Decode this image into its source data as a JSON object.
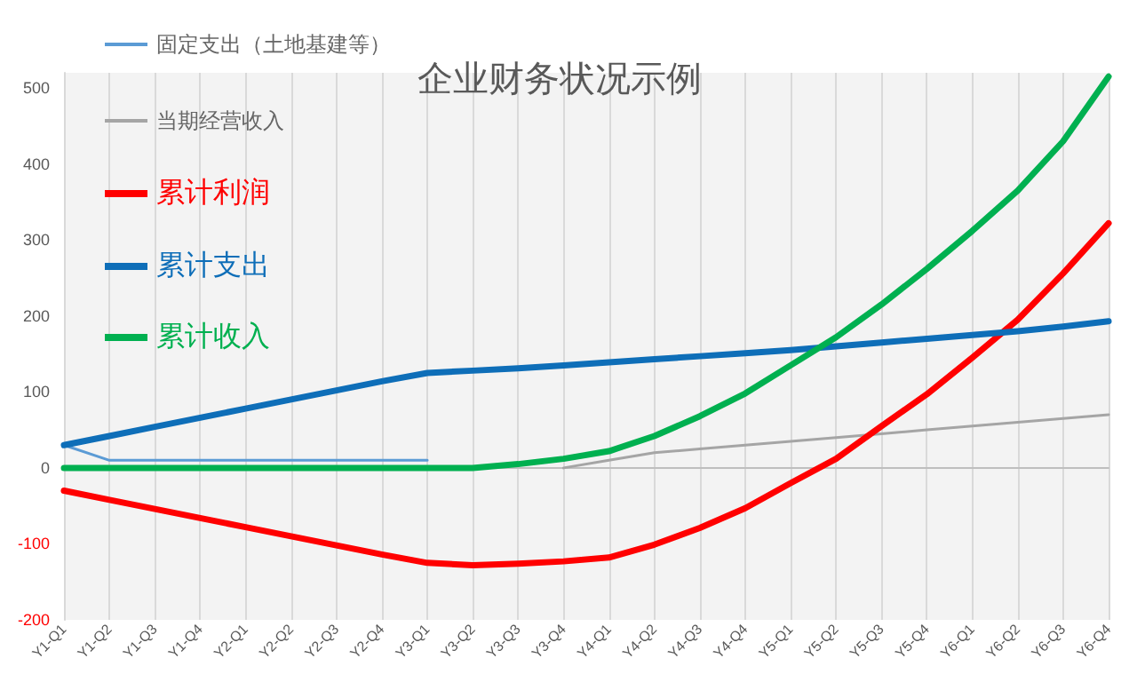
{
  "chart_data": {
    "type": "line",
    "title": "企业财务状况示例",
    "categories": [
      "Y1-Q1",
      "Y1-Q2",
      "Y1-Q3",
      "Y1-Q4",
      "Y2-Q1",
      "Y2-Q2",
      "Y2-Q3",
      "Y2-Q4",
      "Y3-Q1",
      "Y3-Q2",
      "Y3-Q3",
      "Y3-Q4",
      "Y4-Q1",
      "Y4-Q2",
      "Y4-Q3",
      "Y4-Q4",
      "Y5-Q1",
      "Y5-Q2",
      "Y5-Q3",
      "Y5-Q4",
      "Y6-Q1",
      "Y6-Q2",
      "Y6-Q3",
      "Y6-Q4"
    ],
    "series": [
      {
        "name": "固定支出（土地基建等）",
        "color": "#5b9bd5",
        "values": [
          30,
          10,
          10,
          10,
          10,
          10,
          10,
          10,
          10,
          null,
          null,
          null,
          null,
          null,
          null,
          null,
          null,
          null,
          null,
          null,
          null,
          null,
          null,
          null
        ]
      },
      {
        "name": "当期经营收入",
        "color": "#a5a5a5",
        "values": [
          null,
          null,
          null,
          null,
          null,
          null,
          null,
          null,
          null,
          null,
          null,
          0,
          10,
          20,
          25,
          30,
          35,
          40,
          45,
          50,
          55,
          60,
          65,
          70
        ]
      },
      {
        "name": "累计利润",
        "color": "#ff0000",
        "values": [
          -30,
          -42,
          -54,
          -66,
          -78,
          -90,
          -102,
          -114,
          -125,
          -128,
          -126,
          -123,
          -118,
          -101,
          -79,
          -53,
          -20,
          12,
          55,
          97,
          145,
          195,
          256,
          322
        ]
      },
      {
        "name": "累计支出",
        "color": "#0e6eb8",
        "values": [
          30,
          42,
          54,
          66,
          78,
          90,
          102,
          114,
          125,
          128,
          131,
          135,
          139,
          143,
          147,
          151,
          155,
          160,
          165,
          170,
          175,
          180,
          186,
          193
        ]
      },
      {
        "name": "累计收入",
        "color": "#00b050",
        "values": [
          0,
          0,
          0,
          0,
          0,
          0,
          0,
          0,
          0,
          0,
          5,
          12,
          22,
          42,
          68,
          98,
          135,
          172,
          215,
          262,
          312,
          365,
          430,
          515
        ]
      }
    ],
    "ylim": [
      -200,
      520
    ],
    "yticks": [
      -200,
      -100,
      0,
      100,
      200,
      300,
      400,
      500
    ],
    "grid": "x",
    "legend": "top left",
    "marker": "none",
    "line_style": "solid"
  }
}
